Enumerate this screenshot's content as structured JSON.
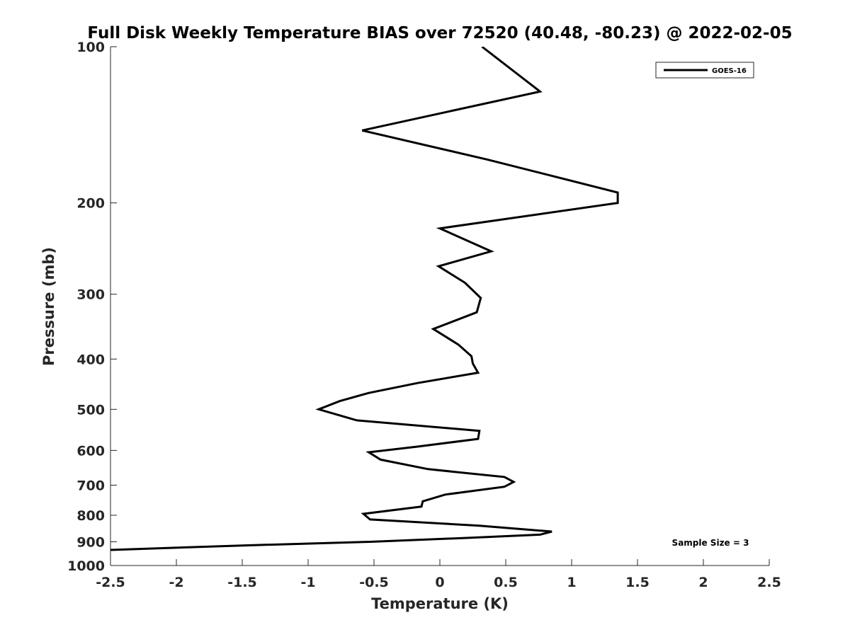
{
  "chart_data": {
    "type": "line",
    "title": "Full Disk Weekly Temperature BIAS over 72520 (40.48, -80.23) @ 2022-02-05",
    "xlabel": "Temperature (K)",
    "ylabel": "Pressure (mb)",
    "xlim": [
      -2.5,
      2.5
    ],
    "ylim": [
      1000,
      100
    ],
    "yscale": "log",
    "xticks": [
      -2.5,
      -2,
      -1.5,
      -1,
      -0.5,
      0,
      0.5,
      1,
      1.5,
      2,
      2.5
    ],
    "xtick_labels": [
      "-2.5",
      "-2",
      "-1.5",
      "-1",
      "-0.5",
      "0",
      "0.5",
      "1",
      "1.5",
      "2",
      "2.5"
    ],
    "yticks": [
      100,
      200,
      300,
      400,
      500,
      600,
      700,
      800,
      900,
      1000
    ],
    "ytick_labels": [
      "100",
      "200",
      "300",
      "400",
      "500",
      "600",
      "700",
      "800",
      "900",
      "1000"
    ],
    "grid": false,
    "legend_position": "top-right",
    "annotation": "Sample Size = 3",
    "series": [
      {
        "name": "GOES-16",
        "color": "#000000",
        "points": [
          [
            0.32,
            100
          ],
          [
            0.76,
            122
          ],
          [
            -0.59,
            145
          ],
          [
            0.36,
            165
          ],
          [
            1.35,
            191
          ],
          [
            1.35,
            200
          ],
          [
            0.0,
            224
          ],
          [
            0.39,
            248
          ],
          [
            -0.01,
            265
          ],
          [
            0.19,
            285
          ],
          [
            0.31,
            305
          ],
          [
            0.28,
            325
          ],
          [
            -0.05,
            350
          ],
          [
            0.14,
            375
          ],
          [
            0.24,
            395
          ],
          [
            0.25,
            408
          ],
          [
            0.29,
            425
          ],
          [
            -0.17,
            445
          ],
          [
            -0.54,
            465
          ],
          [
            -0.76,
            482
          ],
          [
            -0.92,
            500
          ],
          [
            -0.63,
            525
          ],
          [
            0.3,
            550
          ],
          [
            0.29,
            570
          ],
          [
            -0.17,
            590
          ],
          [
            -0.54,
            605
          ],
          [
            -0.45,
            625
          ],
          [
            -0.09,
            652
          ],
          [
            0.49,
            675
          ],
          [
            0.56,
            690
          ],
          [
            0.49,
            705
          ],
          [
            0.04,
            730
          ],
          [
            -0.13,
            752
          ],
          [
            -0.14,
            770
          ],
          [
            -0.58,
            795
          ],
          [
            -0.53,
            815
          ],
          [
            0.3,
            838
          ],
          [
            0.85,
            860
          ],
          [
            0.76,
            872
          ],
          [
            0.19,
            885
          ],
          [
            -0.53,
            900
          ],
          [
            -1.5,
            915
          ],
          [
            -2.6,
            935
          ]
        ]
      }
    ]
  }
}
